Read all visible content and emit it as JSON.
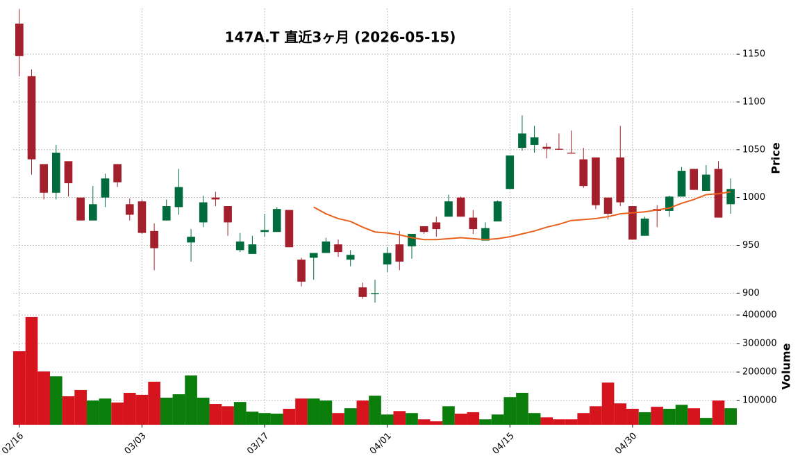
{
  "chart_data": [
    {
      "type": "candlestick",
      "title": "147A.T 直近3ヶ月 (2026-05-15)",
      "ylabel": "Price",
      "categories": [
        "02/16",
        null,
        null,
        null,
        null,
        null,
        null,
        null,
        null,
        null,
        "03/03",
        null,
        null,
        null,
        null,
        null,
        null,
        null,
        null,
        null,
        "03/17",
        null,
        null,
        null,
        null,
        null,
        null,
        null,
        null,
        null,
        "04/01",
        null,
        null,
        null,
        null,
        null,
        null,
        null,
        null,
        null,
        "04/15",
        null,
        null,
        null,
        null,
        null,
        null,
        null,
        null,
        null,
        "04/30",
        null,
        null,
        null,
        null,
        null,
        null,
        null,
        null
      ],
      "open": [
        1182,
        1127,
        1035,
        1005,
        1038,
        1000,
        976,
        1000,
        1035,
        993,
        996,
        965,
        976,
        990,
        953,
        974,
        1000,
        991,
        945,
        941,
        964,
        964,
        987,
        935,
        937,
        942,
        951,
        935,
        906,
        899,
        930,
        951,
        949,
        970,
        974,
        980,
        1000,
        979,
        955,
        975,
        1009,
        1052,
        1055,
        1053,
        1051,
        1047,
        1040,
        1042,
        1000,
        1042,
        991,
        960,
        988,
        986,
        1001,
        1030,
        1007,
        1030,
        993
      ],
      "high": [
        1197,
        1134,
        1035,
        1055,
        1038,
        1000,
        1012,
        1025,
        1035,
        999,
        998,
        973,
        998,
        1030,
        967,
        1002,
        1006,
        991,
        963,
        960,
        983,
        990,
        987,
        937,
        942,
        958,
        956,
        945,
        911,
        914,
        948,
        965,
        962,
        970,
        980,
        1003,
        1001,
        987,
        974,
        997,
        1044,
        1086,
        1075,
        1057,
        1067,
        1070,
        1052,
        1042,
        1000,
        1075,
        991,
        980,
        992,
        1002,
        1032,
        1030,
        1034,
        1038,
        1020
      ],
      "low": [
        1127,
        1024,
        998,
        998,
        1001,
        976,
        976,
        990,
        1011,
        976,
        962,
        924,
        976,
        982,
        933,
        969,
        991,
        960,
        943,
        941,
        959,
        964,
        948,
        907,
        914,
        942,
        938,
        928,
        894,
        890,
        922,
        924,
        936,
        962,
        959,
        980,
        980,
        962,
        955,
        975,
        1009,
        1049,
        1047,
        1041,
        1050,
        1046,
        1010,
        988,
        977,
        991,
        956,
        960,
        969,
        980,
        1001,
        1008,
        1007,
        979,
        983
      ],
      "close": [
        1148,
        1040,
        1005,
        1047,
        1015,
        976,
        993,
        1020,
        1016,
        982,
        963,
        947,
        991,
        1011,
        959,
        995,
        998,
        974,
        954,
        951,
        966,
        988,
        948,
        912,
        942,
        954,
        943,
        940,
        896,
        900,
        942,
        933,
        962,
        964,
        967,
        996,
        980,
        967,
        968,
        996,
        1044,
        1067,
        1063,
        1051,
        1050,
        1046,
        1012,
        992,
        983,
        995,
        956,
        978,
        986,
        1001,
        1028,
        1008,
        1024,
        979,
        1009
      ],
      "up_color": "#006b3c",
      "down_color": "#a31f2c",
      "ma": {
        "color": "#e8601c",
        "values": [
          null,
          null,
          null,
          null,
          null,
          null,
          null,
          null,
          null,
          null,
          null,
          null,
          null,
          null,
          null,
          null,
          null,
          null,
          null,
          null,
          null,
          null,
          null,
          null,
          990,
          983,
          978,
          975,
          969,
          964,
          963,
          961,
          958,
          956,
          956,
          957,
          958,
          957,
          956,
          957,
          959,
          962,
          965,
          969,
          972,
          976,
          977,
          978,
          980,
          983,
          984,
          985,
          987,
          989,
          994,
          998,
          1003,
          1004,
          1006
        ]
      },
      "ylim": [
        885,
        1198
      ],
      "yticks": [
        900,
        950,
        1000,
        1050,
        1100,
        1150
      ],
      "grid": true
    },
    {
      "type": "volume",
      "ylabel": "Volume",
      "values": [
        273000,
        393000,
        202000,
        185000,
        115000,
        137000,
        100000,
        107000,
        93000,
        127000,
        120000,
        166000,
        110000,
        122000,
        188000,
        110000,
        88000,
        80000,
        95000,
        61000,
        56000,
        54000,
        71000,
        107000,
        107000,
        100000,
        56000,
        73000,
        100000,
        117000,
        51000,
        63000,
        56000,
        34000,
        27000,
        80000,
        54000,
        59000,
        34000,
        51000,
        112000,
        127000,
        56000,
        41000,
        34000,
        34000,
        56000,
        80000,
        163000,
        90000,
        71000,
        59000,
        78000,
        71000,
        85000,
        73000,
        39000,
        100000,
        73000
      ],
      "up_color": "#0a7d0a",
      "down_color": "#d6141e",
      "ylim": [
        15000,
        417000
      ],
      "yticks": [
        100000,
        200000,
        300000,
        400000
      ],
      "grid": true
    }
  ]
}
